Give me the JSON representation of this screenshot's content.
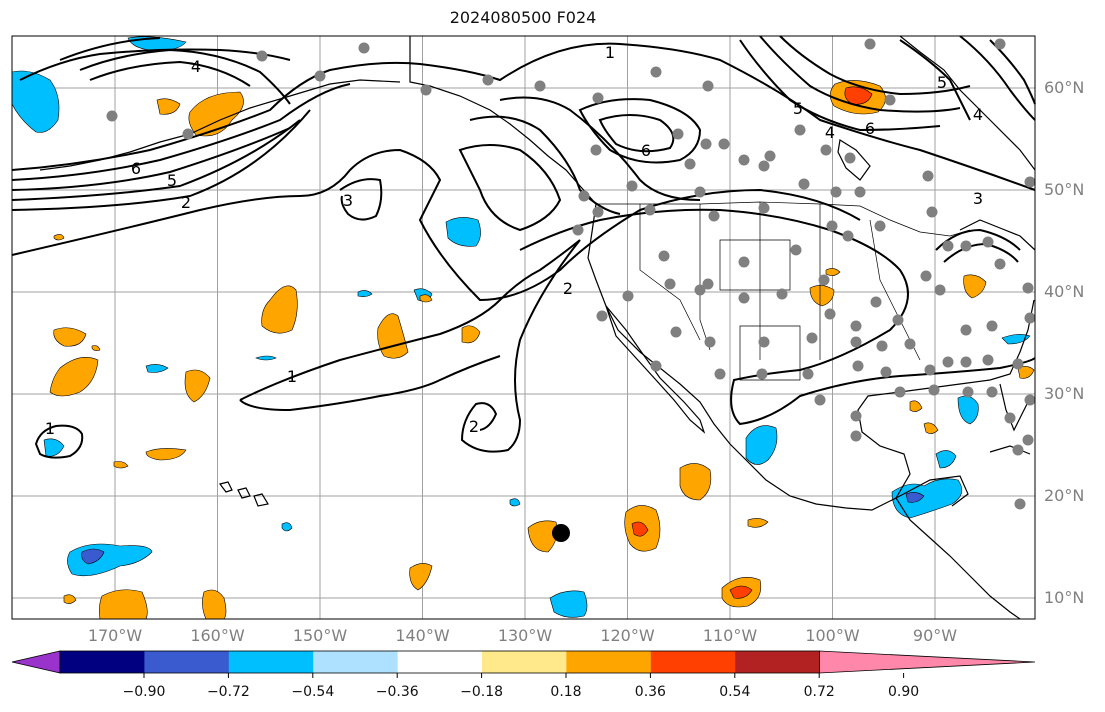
{
  "title": "2024080500 F024",
  "lat_labels": [
    {
      "label": "60°N",
      "lat": 60
    },
    {
      "label": "50°N",
      "lat": 50
    },
    {
      "label": "40°N",
      "lat": 40
    },
    {
      "label": "30°N",
      "lat": 30
    },
    {
      "label": "20°N",
      "lat": 20
    },
    {
      "label": "10°N",
      "lat": 10
    }
  ],
  "lon_labels": [
    {
      "label": "170°W",
      "lon": -170
    },
    {
      "label": "160°W",
      "lon": -160
    },
    {
      "label": "150°W",
      "lon": -150
    },
    {
      "label": "140°W",
      "lon": -140
    },
    {
      "label": "130°W",
      "lon": -130
    },
    {
      "label": "120°W",
      "lon": -120
    },
    {
      "label": "110°W",
      "lon": -110
    },
    {
      "label": "100°W",
      "lon": -100
    },
    {
      "label": "90°W",
      "lon": -90
    }
  ],
  "contour_labels": [
    "1",
    "2",
    "3",
    "4",
    "5",
    "6"
  ],
  "colorbar": {
    "ticks": [
      "−0.90",
      "−0.72",
      "−0.54",
      "−0.36",
      "−0.18",
      "0.18",
      "0.36",
      "0.54",
      "0.72",
      "0.90"
    ],
    "colors": [
      "#9933cc",
      "#000080",
      "#3a5bcf",
      "#00bfff",
      "#aee1ff",
      "#ffffff",
      "#ffe98a",
      "#ffa500",
      "#ff4000",
      "#b22222",
      "#ff88aa"
    ]
  },
  "colors": {
    "station": "#808080",
    "contour": "#000000",
    "grid": "#a0a0a0",
    "coast": "#000000"
  }
}
